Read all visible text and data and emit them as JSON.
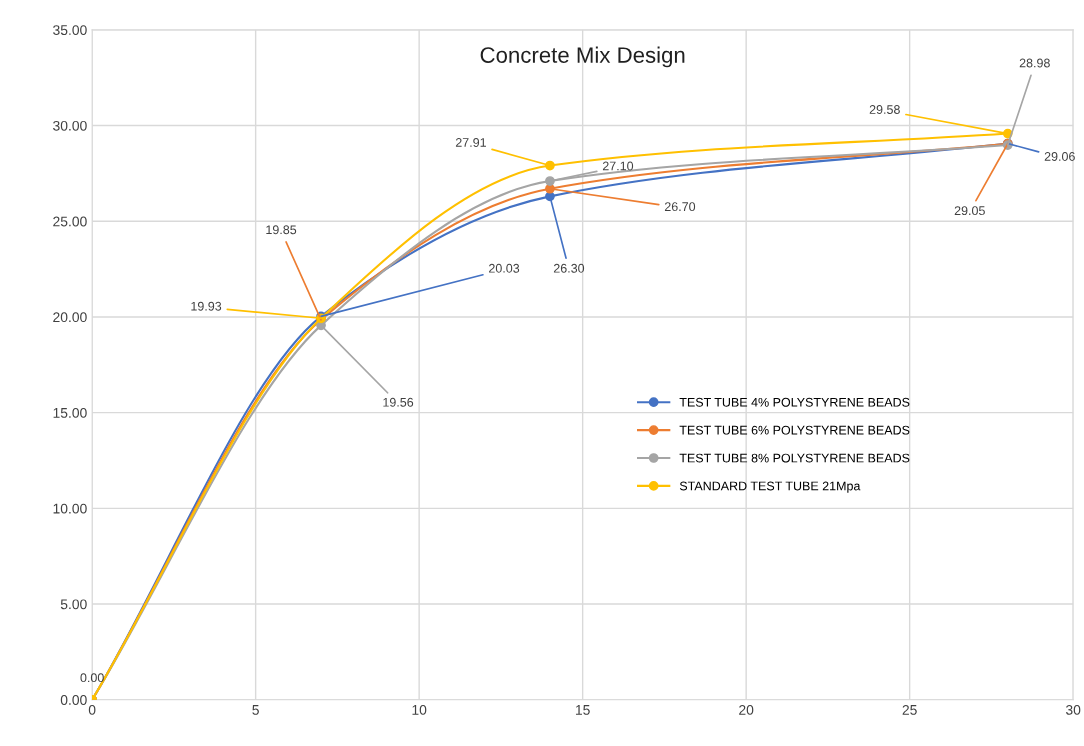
{
  "chart_data": {
    "type": "line",
    "title": "Concrete Mix Design",
    "x": [
      0,
      7,
      14,
      28
    ],
    "series": [
      {
        "name": "TEST TUBE 4% POLYSTYRENE BEADS",
        "color": "#4472c4",
        "values": [
          0,
          20.03,
          26.3,
          29.06
        ],
        "value_labels": [
          null,
          "20.03",
          "26.30",
          "29.06"
        ]
      },
      {
        "name": "TEST TUBE 6% POLYSTYRENE BEADS",
        "color": "#ed7d31",
        "values": [
          0,
          19.85,
          26.7,
          29.05
        ],
        "value_labels": [
          null,
          "19.85",
          "26.70",
          "29.05"
        ]
      },
      {
        "name": "TEST TUBE 8% POLYSTYRENE BEADS",
        "color": "#a5a5a5",
        "values": [
          0,
          19.56,
          27.1,
          28.98
        ],
        "value_labels": [
          null,
          "19.56",
          "27.10",
          "28.98"
        ]
      },
      {
        "name": "STANDARD TEST TUBE 21Mpa",
        "color": "#ffc000",
        "values": [
          0,
          19.93,
          27.91,
          29.58
        ],
        "value_labels": [
          "0.00",
          "19.93",
          "27.91",
          "29.58"
        ]
      }
    ],
    "xlim": [
      0,
      30
    ],
    "xticks": [
      0,
      5,
      10,
      15,
      20,
      25,
      30
    ],
    "ylim": [
      0,
      35
    ],
    "yticks": [
      {
        "value": 0,
        "label": "0.00"
      },
      {
        "value": 5,
        "label": "5.00"
      },
      {
        "value": 10,
        "label": "10.00"
      },
      {
        "value": 15,
        "label": "15.00"
      },
      {
        "value": 20,
        "label": "20.00"
      },
      {
        "value": 25,
        "label": "25.00"
      },
      {
        "value": 30,
        "label": "30.00"
      },
      {
        "value": 35,
        "label": "35.00"
      }
    ],
    "grid": true,
    "legend": "right",
    "marker": "circle",
    "line_style": "solid"
  }
}
